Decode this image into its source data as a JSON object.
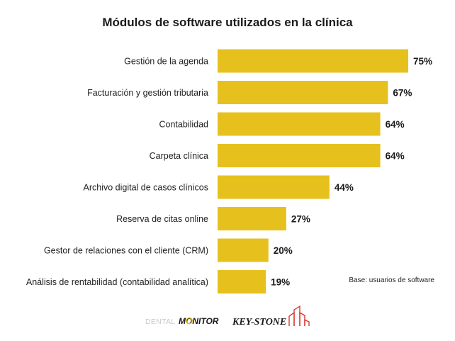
{
  "chart_data": {
    "type": "bar",
    "orientation": "horizontal",
    "title": "Módulos de software utilizados en la clínica",
    "categories": [
      "Gestión de la agenda",
      "Facturación y gestión tributaria",
      "Contabilidad",
      "Carpeta clínica",
      "Archivo digital de casos clínicos",
      "Reserva de citas online",
      "Gestor de relaciones con el cliente (CRM)",
      "Análisis de rentabilidad (contabilidad analítica)"
    ],
    "values": [
      75,
      67,
      64,
      64,
      44,
      27,
      20,
      19
    ],
    "value_labels": [
      "75%",
      "67%",
      "64%",
      "64%",
      "44%",
      "27%",
      "20%",
      "19%"
    ],
    "unit": "%",
    "xlim": [
      0,
      100
    ],
    "grid": false,
    "bar_color": "#e6c11d",
    "note": "Base: usuarios de software"
  },
  "footer": {
    "logo_dental_monitor_a": "DENTAL",
    "logo_dental_monitor_b": "MONITOR",
    "logo_keystone": "KEY-STONE"
  }
}
